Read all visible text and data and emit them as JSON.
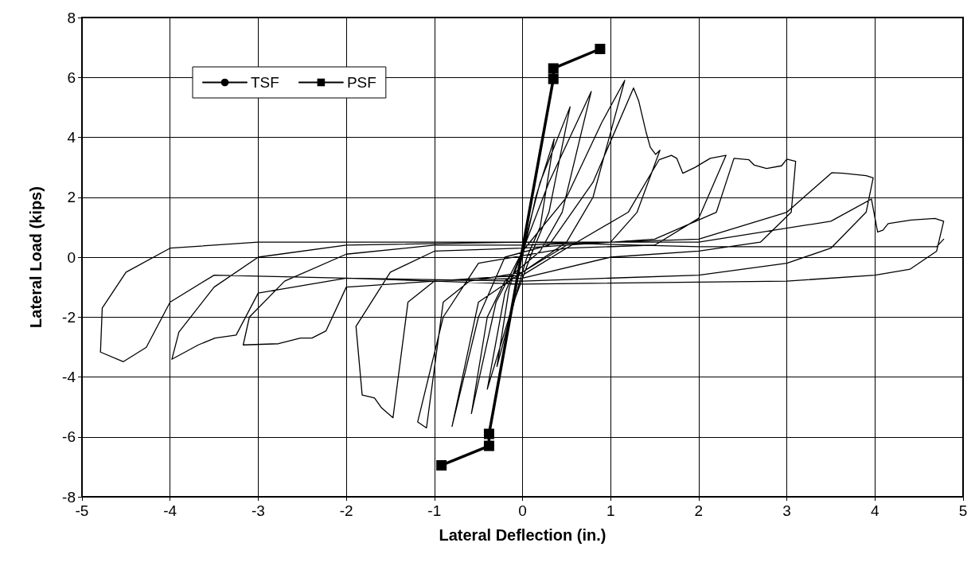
{
  "chart_data": {
    "type": "line",
    "xlabel": "Lateral Deflection (in.)",
    "ylabel": "Lateral Load (kips)",
    "xlim": [
      -5,
      5
    ],
    "xticks": [
      -5,
      -4,
      -3,
      -2,
      -1,
      0,
      1,
      2,
      3,
      4,
      5
    ],
    "ylim": [
      -8,
      8
    ],
    "yticks": [
      -8,
      -6,
      -4,
      -2,
      0,
      2,
      4,
      6,
      8
    ],
    "grid": true,
    "legend": "top left",
    "line_style": "solid",
    "series": [
      {
        "name": "TSF",
        "color": "#000000",
        "marker": "none",
        "x": [
          0,
          0.15,
          0.36,
          0.2,
          0.05,
          -0.05,
          -0.29,
          -0.15,
          0,
          0.2,
          0.54,
          0.3,
          0.1,
          -0.1,
          -0.4,
          -0.2,
          0,
          0.3,
          0.78,
          0.45,
          0.2,
          -0.2,
          -0.4,
          -0.58,
          -0.3,
          0,
          0.5,
          0.9,
          1.16,
          0.8,
          0.5,
          0,
          -0.5,
          -0.8,
          -0.5,
          -0.2,
          0.3,
          0.8,
          1.26,
          1.32,
          1.4,
          1.45,
          1.51,
          1.56,
          1.3,
          1.0,
          0.5,
          0,
          -0.6,
          -0.9,
          -1.09,
          -1.19,
          -0.9,
          -0.5,
          0.5,
          1.2,
          1.55,
          1.69,
          1.75,
          1.82,
          1.96,
          2.13,
          2.31,
          2.0,
          1.5,
          0.5,
          0,
          -1.0,
          -1.3,
          -1.47,
          -1.6,
          -1.68,
          -1.82,
          -1.89,
          -1.5,
          -1,
          0,
          1.5,
          2.2,
          2.4,
          2.57,
          2.63,
          2.77,
          2.94,
          3.0,
          3.1,
          3.05,
          2.7,
          2,
          1,
          0,
          -1,
          -2.0,
          -2.23,
          -2.39,
          -2.52,
          -2.77,
          -3.17,
          -3.1,
          -2.7,
          -2,
          -1,
          0,
          2,
          3,
          3.51,
          3.64,
          3.9,
          3.98,
          3.9,
          3.5,
          3,
          2,
          0,
          -2,
          -3,
          -3.25,
          -3.49,
          -3.68,
          -3.98,
          -3.9,
          -3.5,
          -3,
          -2,
          0,
          2,
          3.5,
          3.96,
          4.03,
          4.09,
          4.15,
          4.41,
          4.68,
          4.78,
          4.7,
          4.4,
          4,
          3,
          0,
          -2,
          -3.5,
          -4.0,
          -4.27,
          -4.53,
          -4.79,
          -4.77,
          -4.5,
          -4,
          -3,
          0,
          2,
          4.7,
          4.78
        ],
        "values": [
          0,
          2,
          3.95,
          1,
          0,
          -1,
          -3.65,
          -1,
          0.2,
          2.5,
          5.02,
          1.5,
          0.1,
          -1.5,
          -4.41,
          -1.2,
          0.2,
          2.5,
          5.53,
          1.5,
          0.2,
          -0.8,
          -2,
          -5.22,
          -1.5,
          0.2,
          2,
          4.5,
          5.9,
          2,
          0.5,
          -0.5,
          -1.5,
          -5.65,
          -2,
          0,
          0.4,
          2.5,
          5.65,
          5.2,
          4.2,
          3.67,
          3.43,
          3.57,
          1.5,
          0.5,
          0.4,
          -0.5,
          -0.8,
          -1.5,
          -5.7,
          -5.5,
          -2,
          -0.2,
          0.3,
          1.5,
          3.25,
          3.4,
          3.3,
          2.8,
          3.0,
          3.3,
          3.4,
          1.3,
          0.4,
          0.3,
          -0.6,
          -0.8,
          -1.5,
          -5.36,
          -5.03,
          -4.7,
          -4.6,
          -2.31,
          -0.5,
          0.2,
          0.3,
          0.6,
          1.5,
          3.3,
          3.25,
          3.07,
          2.96,
          3.05,
          3.27,
          3.2,
          1.5,
          0.5,
          0.2,
          0,
          -0.7,
          -0.8,
          -1.0,
          -2.46,
          -2.7,
          -2.7,
          -2.89,
          -2.93,
          -2.0,
          -0.8,
          0.1,
          0.4,
          0.4,
          0.6,
          1.5,
          2.82,
          2.8,
          2.72,
          2.65,
          1.5,
          0.3,
          -0.2,
          -0.6,
          -0.8,
          -0.7,
          -1.2,
          -2.6,
          -2.7,
          -2.93,
          -3.41,
          -2.5,
          -1,
          0,
          0.4,
          0.5,
          0.5,
          1.2,
          1.94,
          0.84,
          0.9,
          1.12,
          1.24,
          1.29,
          1.2,
          0.2,
          -0.4,
          -0.6,
          -0.8,
          -0.9,
          -0.7,
          -0.6,
          -1.5,
          -3.01,
          -3.49,
          -3.17,
          -1.7,
          -0.5,
          0.3,
          0.5,
          0.5,
          0.35,
          0.35,
          0.6
        ]
      },
      {
        "name": "PSF",
        "color": "#000000",
        "marker": "square",
        "x": [
          -0.92,
          -0.38,
          -0.38,
          0.35,
          0.35,
          0.88
        ],
        "values": [
          -6.95,
          -6.3,
          -5.9,
          5.95,
          6.3,
          6.95
        ]
      }
    ]
  }
}
